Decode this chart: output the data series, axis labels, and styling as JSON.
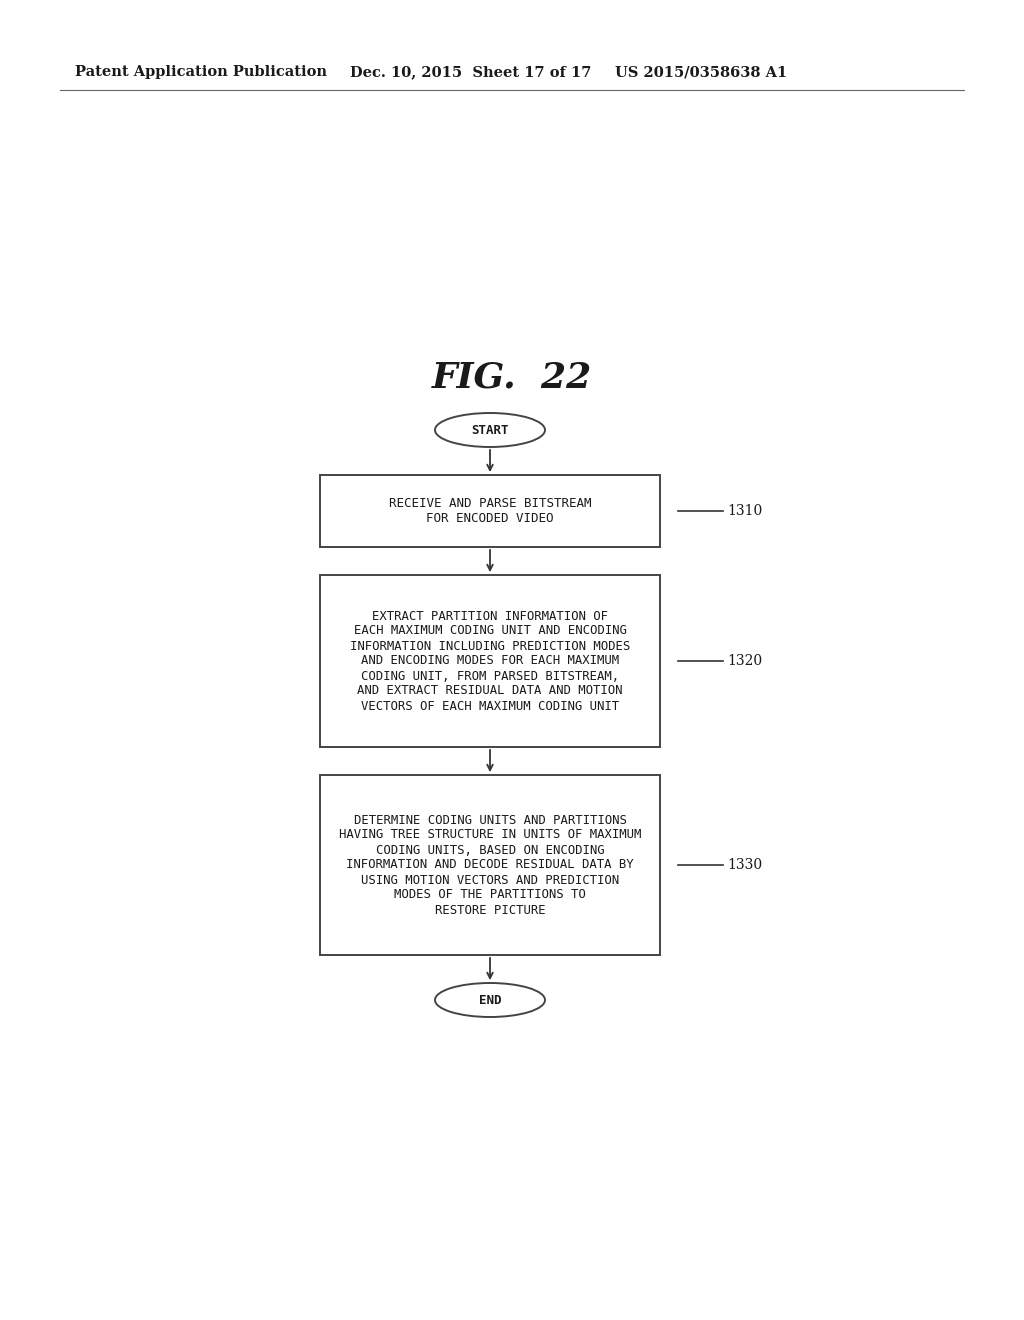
{
  "title": "FIG.  22",
  "header_left": "Patent Application Publication",
  "header_mid": "Dec. 10, 2015  Sheet 17 of 17",
  "header_right": "US 2015/0358638 A1",
  "bg_color": "#ffffff",
  "text_color": "#1a1a1a",
  "box_color": "#ffffff",
  "box_edge_color": "#444444",
  "arrow_color": "#333333",
  "start_label": "START",
  "end_label": "END",
  "box1_label": "RECEIVE AND PARSE BITSTREAM\nFOR ENCODED VIDEO",
  "box1_ref": "1310",
  "box2_label": "EXTRACT PARTITION INFORMATION OF\nEACH MAXIMUM CODING UNIT AND ENCODING\nINFORMATION INCLUDING PREDICTION MODES\nAND ENCODING MODES FOR EACH MAXIMUM\nCODING UNIT, FROM PARSED BITSTREAM,\nAND EXTRACT RESIDUAL DATA AND MOTION\nVECTORS OF EACH MAXIMUM CODING UNIT",
  "box2_ref": "1320",
  "box3_label": "DETERMINE CODING UNITS AND PARTITIONS\nHAVING TREE STRUCTURE IN UNITS OF MAXIMUM\nCODING UNITS, BASED ON ENCODING\nINFORMATION AND DECODE RESIDUAL DATA BY\nUSING MOTION VECTORS AND PREDICTION\nMODES OF THE PARTITIONS TO\nRESTORE PICTURE",
  "box3_ref": "1330"
}
